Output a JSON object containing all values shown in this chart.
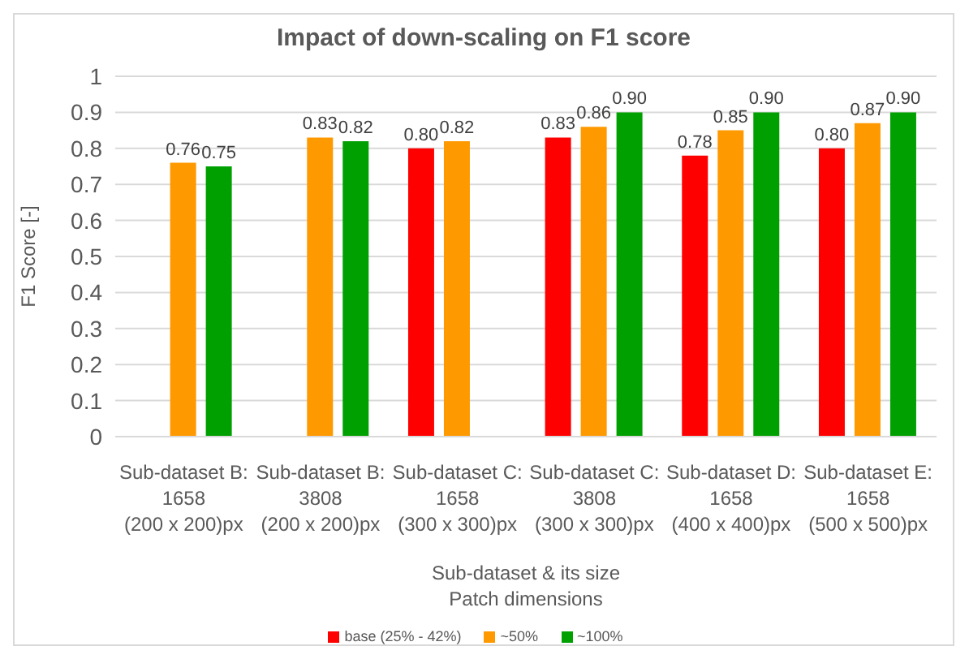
{
  "chart_data": {
    "type": "bar",
    "title": "Impact of down-scaling on F1 score",
    "xlabel": "Sub-dataset & its size\nPatch dimensions",
    "ylabel": "F1 Score [-]",
    "categories": [
      "Sub-dataset B:\n1658\n(200 x 200)px",
      "Sub-dataset B:\n3808\n(200 x 200)px",
      "Sub-dataset C:\n1658\n(300 x 300)px",
      "Sub-dataset C:\n3808\n(300 x 300)px",
      "Sub-dataset D:\n1658\n(400 x 400)px",
      "Sub-dataset E:\n1658\n(500 x 500)px"
    ],
    "series": [
      {
        "name": "base (25% - 42%)",
        "color": "#ff0000",
        "values": [
          null,
          null,
          0.8,
          0.83,
          0.78,
          0.8
        ],
        "value_labels": [
          null,
          null,
          "0.80",
          "0.83",
          "0.78",
          "0.80"
        ]
      },
      {
        "name": "~50%",
        "color": "#ff9900",
        "values": [
          0.76,
          0.83,
          0.82,
          0.86,
          0.85,
          0.87
        ],
        "value_labels": [
          "0.76",
          "0.83",
          "0.82",
          "0.86",
          "0.85",
          "0.87"
        ]
      },
      {
        "name": "~100%",
        "color": "#00a000",
        "values": [
          0.75,
          0.82,
          null,
          0.9,
          0.9,
          0.9
        ],
        "value_labels": [
          "0.75",
          "0.82",
          null,
          "0.90",
          "0.90",
          "0.90"
        ]
      }
    ],
    "ylim": [
      0,
      1
    ],
    "yticks": [
      0,
      0.1,
      0.2,
      0.3,
      0.4,
      0.5,
      0.6,
      0.7,
      0.8,
      0.9,
      1
    ],
    "grid": "y",
    "legend": "bottom"
  }
}
